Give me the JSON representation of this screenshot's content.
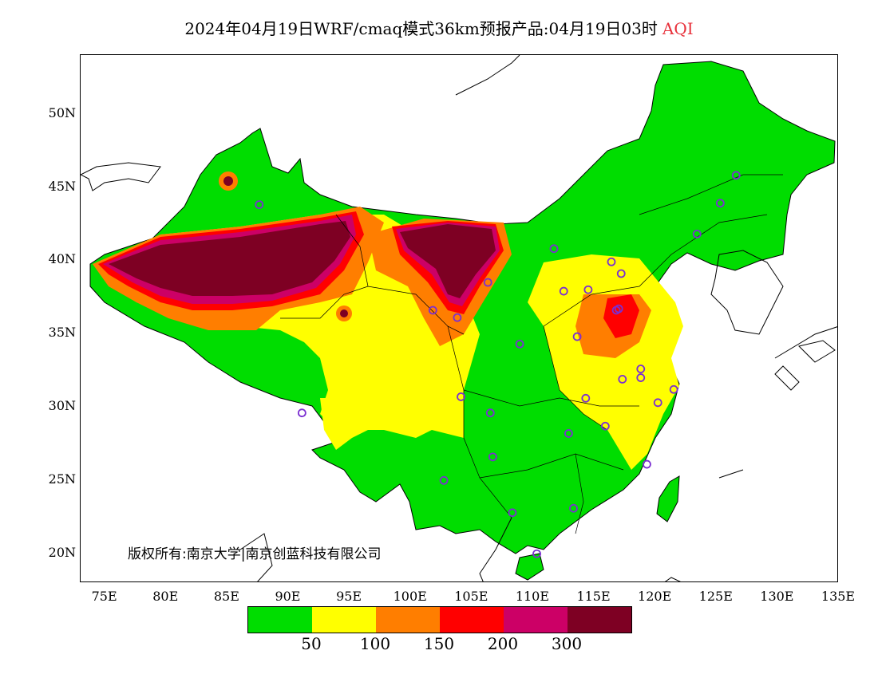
{
  "title": {
    "main": "2024年04月19日WRF/cmaq模式36km预报产品:04月19日03时",
    "variable": "AQI"
  },
  "map": {
    "lat_labels": [
      "50N",
      "45N",
      "40N",
      "35N",
      "30N",
      "25N",
      "20N"
    ],
    "lat_values": [
      50,
      45,
      40,
      35,
      30,
      25,
      20
    ],
    "lon_labels": [
      "75E",
      "80E",
      "85E",
      "90E",
      "95E",
      "100E",
      "105E",
      "110E",
      "115E",
      "120E",
      "125E",
      "130E",
      "135E"
    ],
    "lon_values": [
      75,
      80,
      85,
      90,
      95,
      100,
      105,
      110,
      115,
      120,
      125,
      130,
      135
    ],
    "extent": {
      "lon_min": 73,
      "lon_max": 135,
      "lat_min": 18,
      "lat_max": 54
    },
    "copyright": "版权所有:南京大学|南京创蓝科技有限公司",
    "stations": [
      [
        87.6,
        43.8
      ],
      [
        91.1,
        29.6
      ],
      [
        101.8,
        36.6
      ],
      [
        103.8,
        36.1
      ],
      [
        106.3,
        38.5
      ],
      [
        104.1,
        30.7
      ],
      [
        106.5,
        29.6
      ],
      [
        106.7,
        26.6
      ],
      [
        102.7,
        25.0
      ],
      [
        108.3,
        22.8
      ],
      [
        110.3,
        20.0
      ],
      [
        113.3,
        23.1
      ],
      [
        112.9,
        28.2
      ],
      [
        114.3,
        30.6
      ],
      [
        115.9,
        28.7
      ],
      [
        117.3,
        31.9
      ],
      [
        118.8,
        32.0
      ],
      [
        120.2,
        30.3
      ],
      [
        121.5,
        31.2
      ],
      [
        119.3,
        26.1
      ],
      [
        113.6,
        34.8
      ],
      [
        117.0,
        36.7
      ],
      [
        114.5,
        38.0
      ],
      [
        112.5,
        37.9
      ],
      [
        111.7,
        40.8
      ],
      [
        116.4,
        39.9
      ],
      [
        117.2,
        39.1
      ],
      [
        123.4,
        41.8
      ],
      [
        125.3,
        43.9
      ],
      [
        126.6,
        45.8
      ],
      [
        108.9,
        34.3
      ],
      [
        118.8,
        32.6
      ],
      [
        116.8,
        36.6
      ]
    ]
  },
  "legend": {
    "colors": [
      "#00dd00",
      "#ffff00",
      "#ff7e00",
      "#ff0000",
      "#cc0066",
      "#7e0023"
    ],
    "labels": [
      "50",
      "100",
      "150",
      "200",
      "300"
    ]
  },
  "colors": {
    "good": "#00dd00",
    "moderate": "#ffff00",
    "usg": "#ff7e00",
    "unhealthy": "#ff0000",
    "very_unhealthy": "#cc0066",
    "hazardous": "#7e0023",
    "station_marker": "#7b2fd1"
  }
}
